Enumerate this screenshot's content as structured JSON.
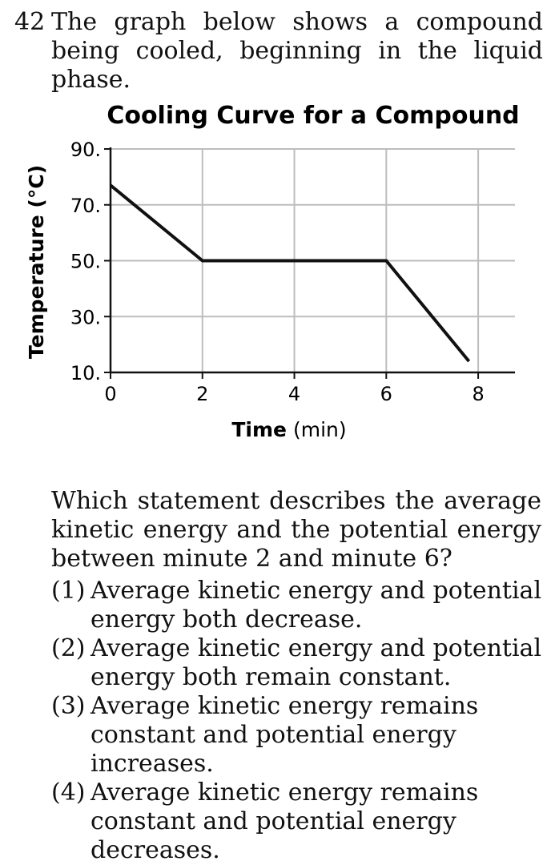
{
  "question": {
    "number": "42",
    "stem": "The graph below shows a compound being cooled, beginning in the liquid phase.",
    "prompt": "Which statement describes the average kinetic energy and the potential energy between minute 2 and minute 6?",
    "choices": [
      {
        "label": "(1)",
        "text": "Average kinetic energy and potential energy both decrease."
      },
      {
        "label": "(2)",
        "text": "Average kinetic energy and potential energy both remain constant."
      },
      {
        "label": "(3)",
        "text": "Average kinetic energy remains constant and potential energy increases."
      },
      {
        "label": "(4)",
        "text": "Average kinetic energy remains constant and potential energy decreases."
      }
    ]
  },
  "chart_data": {
    "type": "line",
    "title": "Cooling Curve for a Compound",
    "xlabel_bold": "Time",
    "xlabel_unit": " (min)",
    "ylabel": "Temperature (°C)",
    "x_ticks": [
      0,
      2,
      4,
      6,
      8
    ],
    "x_tick_labels": [
      "0",
      "2",
      "4",
      "6",
      "8"
    ],
    "y_ticks": [
      10,
      30,
      50,
      70,
      90
    ],
    "y_tick_labels": [
      "10.",
      "30.",
      "50.",
      "70.",
      "90."
    ],
    "xlim": [
      0,
      8.8
    ],
    "ylim": [
      10,
      90
    ],
    "grid": true,
    "series": [
      {
        "points": [
          [
            0,
            77
          ],
          [
            2,
            50
          ],
          [
            6,
            50
          ],
          [
            7.8,
            14
          ]
        ],
        "color": "#111111"
      }
    ],
    "grid_color": "#bdbdbd"
  }
}
